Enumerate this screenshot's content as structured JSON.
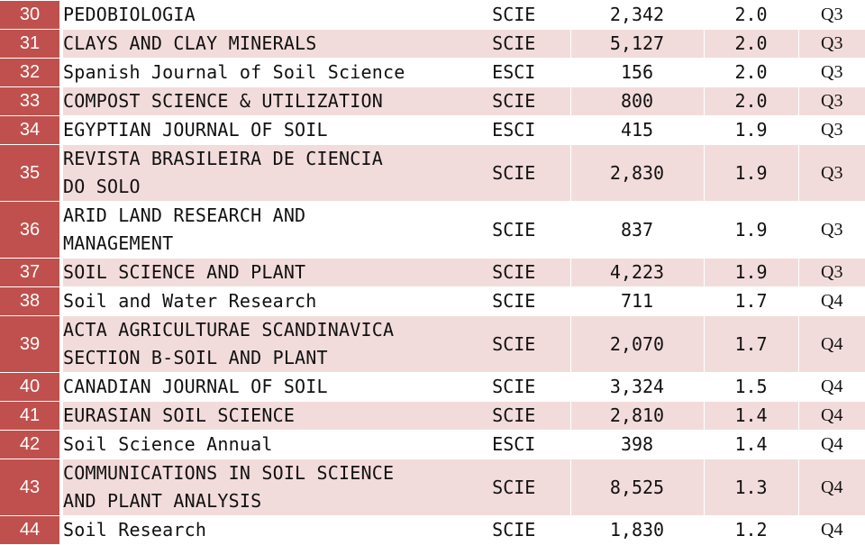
{
  "colors": {
    "rank_bg": "#c0504d",
    "stripe_bg": "#f2dcdb",
    "plain_bg": "#ffffff"
  },
  "rows": [
    {
      "rank": "30",
      "name": [
        "PEDOBIOLOGIA"
      ],
      "index": "SCIE",
      "count": "2,342",
      "impact": "2.0",
      "quartile": "Q3"
    },
    {
      "rank": "31",
      "name": [
        "CLAYS AND CLAY MINERALS"
      ],
      "index": "SCIE",
      "count": "5,127",
      "impact": "2.0",
      "quartile": "Q3"
    },
    {
      "rank": "32",
      "name": [
        "Spanish Journal of Soil Science"
      ],
      "index": "ESCI",
      "count": "156",
      "impact": "2.0",
      "quartile": "Q3"
    },
    {
      "rank": "33",
      "name": [
        "COMPOST SCIENCE & UTILIZATION"
      ],
      "index": "SCIE",
      "count": "800",
      "impact": "2.0",
      "quartile": "Q3"
    },
    {
      "rank": "34",
      "name": [
        "EGYPTIAN JOURNAL OF SOIL"
      ],
      "index": "ESCI",
      "count": "415",
      "impact": "1.9",
      "quartile": "Q3"
    },
    {
      "rank": "35",
      "name": [
        "REVISTA BRASILEIRA DE CIENCIA",
        "DO SOLO"
      ],
      "index": "SCIE",
      "count": "2,830",
      "impact": "1.9",
      "quartile": "Q3"
    },
    {
      "rank": "36",
      "name": [
        "ARID LAND RESEARCH AND",
        "MANAGEMENT"
      ],
      "index": "SCIE",
      "count": "837",
      "impact": "1.9",
      "quartile": "Q3"
    },
    {
      "rank": "37",
      "name": [
        "SOIL SCIENCE AND PLANT"
      ],
      "index": "SCIE",
      "count": "4,223",
      "impact": "1.9",
      "quartile": "Q3"
    },
    {
      "rank": "38",
      "name": [
        "Soil and Water Research"
      ],
      "index": "SCIE",
      "count": "711",
      "impact": "1.7",
      "quartile": "Q4"
    },
    {
      "rank": "39",
      "name": [
        "ACTA AGRICULTURAE SCANDINAVICA",
        "SECTION B-SOIL AND PLANT"
      ],
      "index": "SCIE",
      "count": "2,070",
      "impact": "1.7",
      "quartile": "Q4"
    },
    {
      "rank": "40",
      "name": [
        "CANADIAN JOURNAL OF SOIL"
      ],
      "index": "SCIE",
      "count": "3,324",
      "impact": "1.5",
      "quartile": "Q4"
    },
    {
      "rank": "41",
      "name": [
        "EURASIAN SOIL SCIENCE"
      ],
      "index": "SCIE",
      "count": "2,810",
      "impact": "1.4",
      "quartile": "Q4"
    },
    {
      "rank": "42",
      "name": [
        "Soil Science Annual"
      ],
      "index": "ESCI",
      "count": "398",
      "impact": "1.4",
      "quartile": "Q4"
    },
    {
      "rank": "43",
      "name": [
        "COMMUNICATIONS IN SOIL SCIENCE",
        "AND PLANT ANALYSIS"
      ],
      "index": "SCIE",
      "count": "8,525",
      "impact": "1.3",
      "quartile": "Q4"
    },
    {
      "rank": "44",
      "name": [
        "Soil Research"
      ],
      "index": "SCIE",
      "count": "1,830",
      "impact": "1.2",
      "quartile": "Q4"
    }
  ]
}
